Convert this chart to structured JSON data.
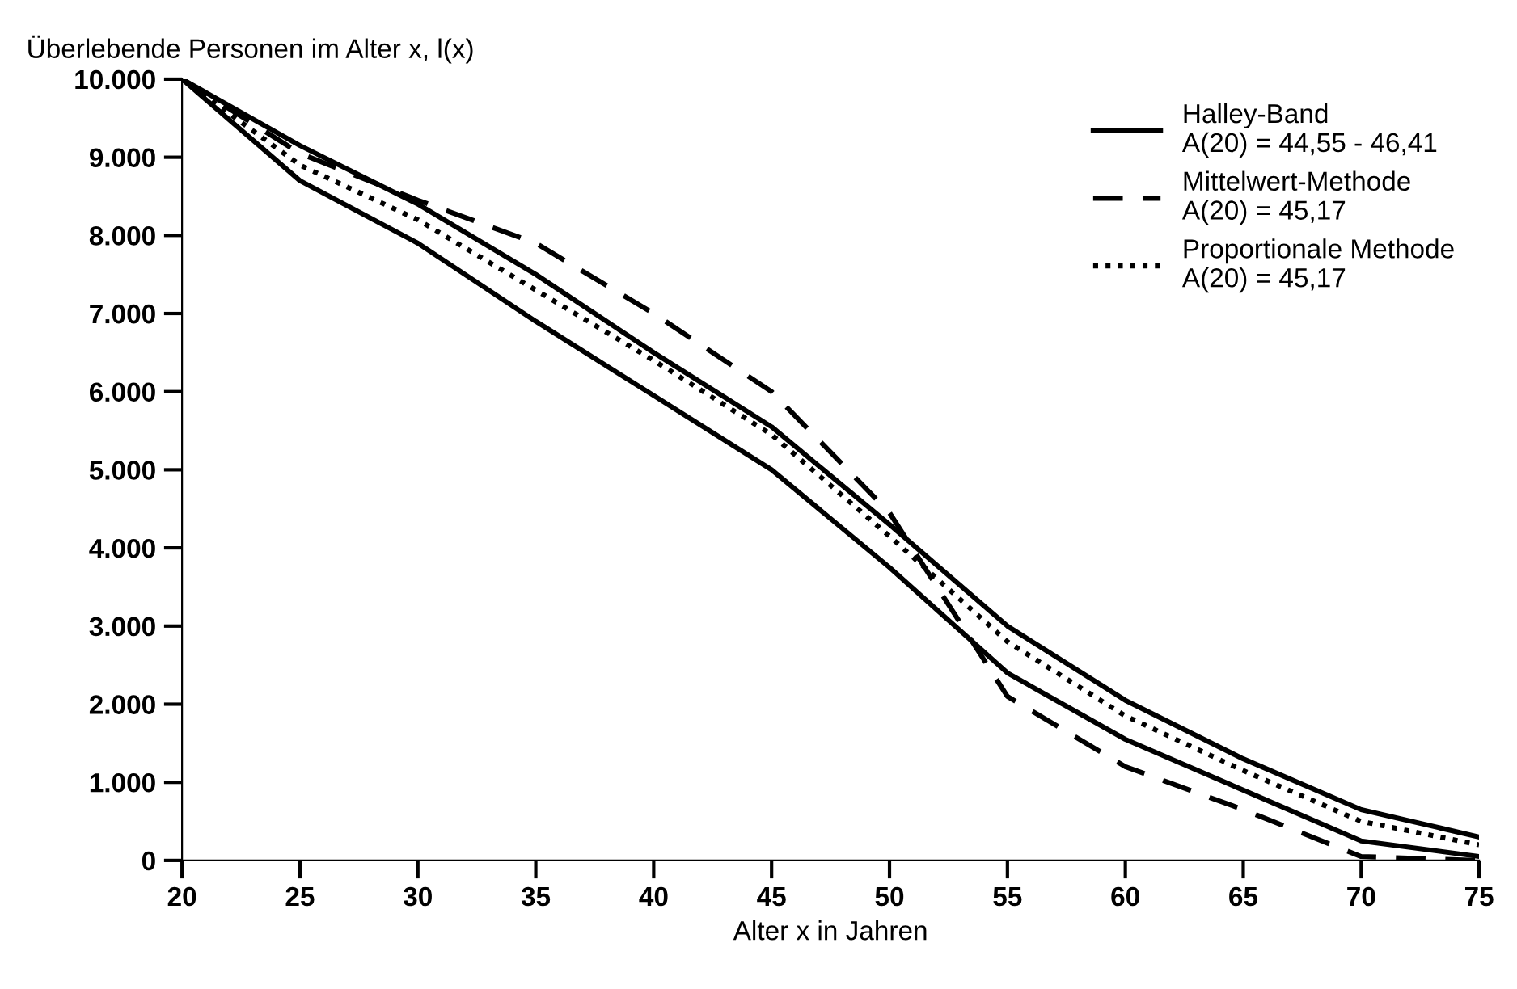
{
  "chart_data": {
    "type": "line",
    "ylabel": "Überlebende Personen im Alter x, l(x)",
    "xlabel": "Alter x in Jahren",
    "x": [
      20,
      25,
      30,
      35,
      40,
      45,
      50,
      55,
      60,
      65,
      70,
      75
    ],
    "series": [
      {
        "name": "Halley-Band\nA(20) = 44,55 - 46,41",
        "color": "#000000",
        "line_style": "solid",
        "values": [
          10000,
          9150,
          8400,
          7500,
          6500,
          5550,
          4300,
          3000,
          2050,
          1300,
          650,
          300
        ]
      },
      {
        "color": "#000000",
        "line_style": "solid",
        "values": [
          10000,
          8700,
          7900,
          6900,
          5950,
          5000,
          3750,
          2400,
          1550,
          900,
          250,
          50
        ]
      },
      {
        "name": "Mittelwert-Methode\nA(20) = 45,17",
        "color": "#000000",
        "line_style": "dashed",
        "values": [
          10000,
          9050,
          8450,
          7900,
          7000,
          6000,
          4450,
          2100,
          1200,
          650,
          50,
          0
        ]
      },
      {
        "name": "Proportionale Methode\nA(20) = 45,17",
        "color": "#000000",
        "line_style": "dotted",
        "values": [
          10000,
          8900,
          8200,
          7300,
          6400,
          5450,
          4150,
          2800,
          1850,
          1150,
          500,
          200
        ]
      }
    ],
    "xlim": [
      20,
      75
    ],
    "xticks": [
      20,
      25,
      30,
      35,
      40,
      45,
      50,
      55,
      60,
      65,
      70,
      75
    ],
    "ylim": [
      0,
      10000
    ],
    "yticks": [
      {
        "value": 0,
        "label": "0"
      },
      {
        "value": 1000,
        "label": "1.000"
      },
      {
        "value": 2000,
        "label": "2.000"
      },
      {
        "value": 3000,
        "label": "3.000"
      },
      {
        "value": 4000,
        "label": "4.000"
      },
      {
        "value": 5000,
        "label": "5.000"
      },
      {
        "value": 6000,
        "label": "6.000"
      },
      {
        "value": 7000,
        "label": "7.000"
      },
      {
        "value": 8000,
        "label": "8.000"
      },
      {
        "value": 9000,
        "label": "9.000"
      },
      {
        "value": 10000,
        "label": "10.000"
      }
    ],
    "grid": false,
    "legend": "top right",
    "marker": "none"
  }
}
